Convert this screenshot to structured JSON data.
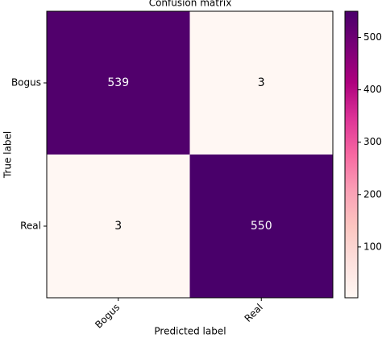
{
  "chart_data": {
    "type": "heatmap",
    "title": "Confusion matrix",
    "x_label": "Predicted label",
    "y_label": "True label",
    "x_categories": [
      "Bogus",
      "Real"
    ],
    "y_categories": [
      "Bogus",
      "Real"
    ],
    "values": [
      [
        539,
        3
      ],
      [
        3,
        550
      ]
    ],
    "colormap": [
      "#fff7f3",
      "#fde0dd",
      "#fcc5c0",
      "#fa9fb5",
      "#f768a1",
      "#dd3497",
      "#ae017e",
      "#7a0177",
      "#49006a"
    ],
    "clim": [
      3,
      550
    ],
    "cticks": [
      100,
      200,
      300,
      400,
      500
    ]
  }
}
